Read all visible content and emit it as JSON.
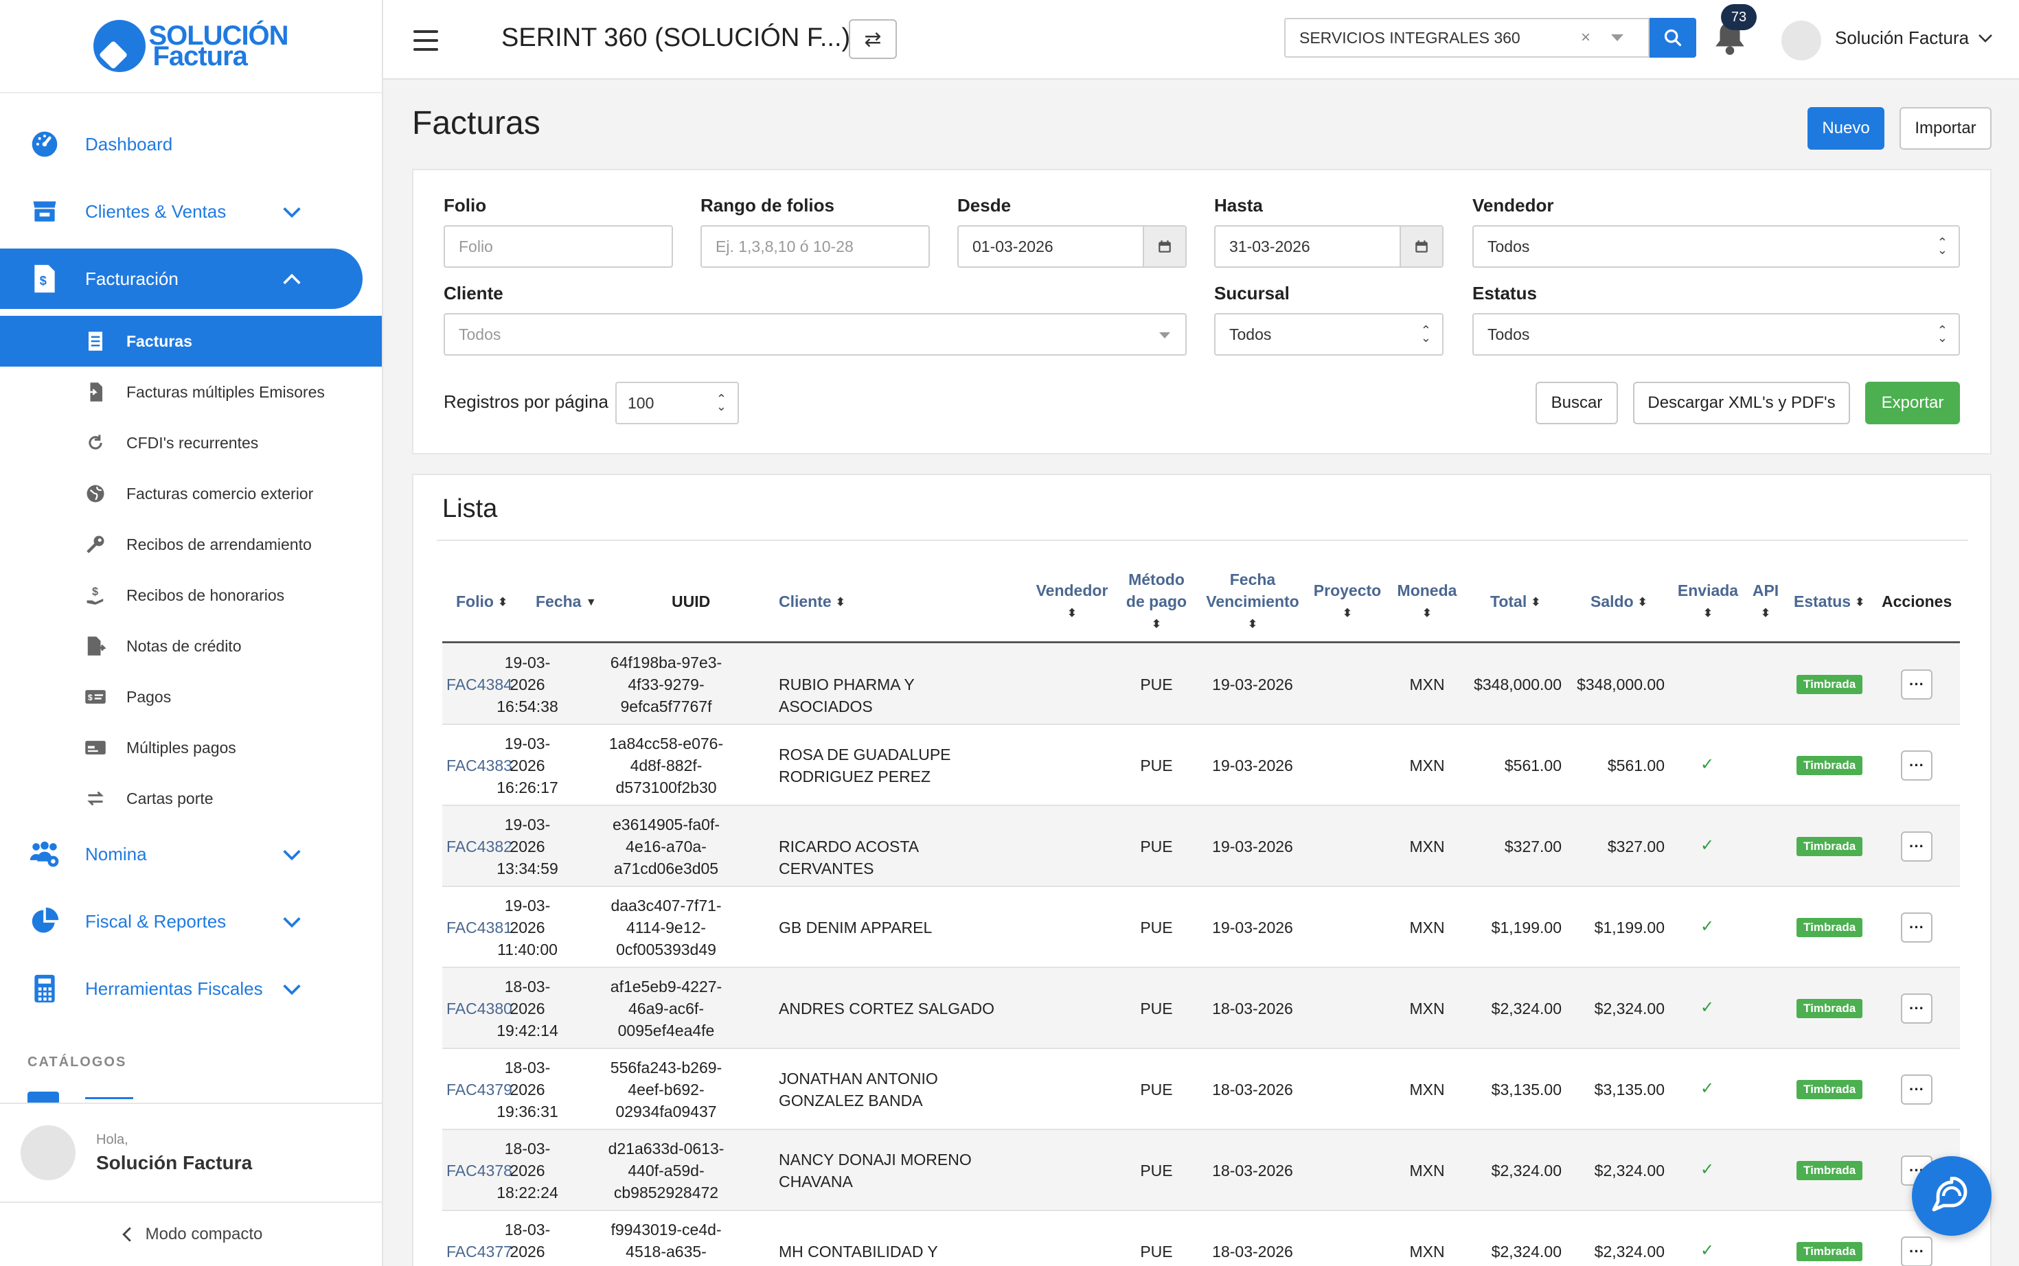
{
  "logo": {
    "line1": "SOLUCIÓN",
    "line2": "Factura"
  },
  "sidebar": {
    "items": [
      {
        "label": "Dashboard"
      },
      {
        "label": "Clientes & Ventas"
      },
      {
        "label": "Facturación"
      },
      {
        "label": "Nomina"
      },
      {
        "label": "Fiscal & Reportes"
      },
      {
        "label": "Herramientas Fiscales"
      }
    ],
    "subitems": [
      {
        "label": "Facturas"
      },
      {
        "label": "Facturas múltiples Emisores"
      },
      {
        "label": "CFDI's recurrentes"
      },
      {
        "label": "Facturas comercio exterior"
      },
      {
        "label": "Recibos de arrendamiento"
      },
      {
        "label": "Recibos de honorarios"
      },
      {
        "label": "Notas de crédito"
      },
      {
        "label": "Pagos"
      },
      {
        "label": "Múltiples pagos"
      },
      {
        "label": "Cartas porte"
      }
    ],
    "catalogos": "CATÁLOGOS",
    "greeting": "Hola,",
    "user": "Solución Factura",
    "compact": "Modo compacto"
  },
  "topbar": {
    "title": "SERINT 360 (SOLUCIÓN F...)",
    "company": "SERVICIOS INTEGRALES 360",
    "clear": "×",
    "notif_count": "73",
    "user": "Solución Factura"
  },
  "page": {
    "title": "Facturas",
    "new_label": "Nuevo",
    "import_label": "Importar"
  },
  "filters": {
    "folio_label": "Folio",
    "folio_placeholder": "Folio",
    "rango_label": "Rango de folios",
    "rango_placeholder": "Ej. 1,3,8,10 ó 10-28",
    "desde_label": "Desde",
    "desde_value": "01-03-2026",
    "hasta_label": "Hasta",
    "hasta_value": "31-03-2026",
    "vendedor_label": "Vendedor",
    "vendedor_value": "Todos",
    "cliente_label": "Cliente",
    "cliente_value": "Todos",
    "sucursal_label": "Sucursal",
    "sucursal_value": "Todos",
    "estatus_label": "Estatus",
    "estatus_value": "Todos",
    "registros_label": "Registros por página",
    "registros_value": "100",
    "buscar": "Buscar",
    "descargar": "Descargar XML's y PDF's",
    "exportar": "Exportar"
  },
  "list": {
    "title": "Lista",
    "headers": {
      "folio": "Folio",
      "fecha": "Fecha",
      "uuid": "UUID",
      "cliente": "Cliente",
      "vendedor": "Vendedor",
      "metodo1": "Método",
      "metodo2": "de pago",
      "fv1": "Fecha",
      "fv2": "Vencimiento",
      "proyecto": "Proyecto",
      "moneda": "Moneda",
      "total": "Total",
      "saldo": "Saldo",
      "enviada": "Enviada",
      "api": "API",
      "estatus": "Estatus",
      "acciones": "Acciones"
    },
    "rows": [
      {
        "folio": "FAC4384",
        "fecha": [
          "19-03-",
          "2026",
          "16:54:38"
        ],
        "uuid": [
          "64f198ba-97e3-",
          "4f33-9279-",
          "9efca5f7767f"
        ],
        "cliente": [
          "RUBIO PHARMA Y ASOCIADOS"
        ],
        "metodo": "PUE",
        "fv": "19-03-2026",
        "moneda": "MXN",
        "total": "$348,000.00",
        "saldo": "$348,000.00",
        "enviada": false,
        "estatus": "Timbrada"
      },
      {
        "folio": "FAC4383",
        "fecha": [
          "19-03-",
          "2026",
          "16:26:17"
        ],
        "uuid": [
          "1a84cc58-e076-",
          "4d8f-882f-",
          "d573100f2b30"
        ],
        "cliente": [
          "ROSA DE GUADALUPE",
          "RODRIGUEZ PEREZ"
        ],
        "metodo": "PUE",
        "fv": "19-03-2026",
        "moneda": "MXN",
        "total": "$561.00",
        "saldo": "$561.00",
        "enviada": true,
        "estatus": "Timbrada"
      },
      {
        "folio": "FAC4382",
        "fecha": [
          "19-03-",
          "2026",
          "13:34:59"
        ],
        "uuid": [
          "e3614905-fa0f-",
          "4e16-a70a-",
          "a71cd06e3d05"
        ],
        "cliente": [
          "RICARDO ACOSTA CERVANTES"
        ],
        "metodo": "PUE",
        "fv": "19-03-2026",
        "moneda": "MXN",
        "total": "$327.00",
        "saldo": "$327.00",
        "enviada": true,
        "estatus": "Timbrada"
      },
      {
        "folio": "FAC4381",
        "fecha": [
          "19-03-",
          "2026",
          "11:40:00"
        ],
        "uuid": [
          "daa3c407-7f71-",
          "4114-9e12-",
          "0cf005393d49"
        ],
        "cliente": [
          "GB DENIM APPAREL"
        ],
        "metodo": "PUE",
        "fv": "19-03-2026",
        "moneda": "MXN",
        "total": "$1,199.00",
        "saldo": "$1,199.00",
        "enviada": true,
        "estatus": "Timbrada"
      },
      {
        "folio": "FAC4380",
        "fecha": [
          "18-03-",
          "2026",
          "19:42:14"
        ],
        "uuid": [
          "af1e5eb9-4227-",
          "46a9-ac6f-",
          "0095ef4ea4fe"
        ],
        "cliente": [
          "ANDRES CORTEZ SALGADO"
        ],
        "metodo": "PUE",
        "fv": "18-03-2026",
        "moneda": "MXN",
        "total": "$2,324.00",
        "saldo": "$2,324.00",
        "enviada": true,
        "estatus": "Timbrada"
      },
      {
        "folio": "FAC4379",
        "fecha": [
          "18-03-",
          "2026",
          "19:36:31"
        ],
        "uuid": [
          "556fa243-b269-",
          "4eef-b692-",
          "02934fa09437"
        ],
        "cliente": [
          "JONATHAN ANTONIO",
          "GONZALEZ BANDA"
        ],
        "metodo": "PUE",
        "fv": "18-03-2026",
        "moneda": "MXN",
        "total": "$3,135.00",
        "saldo": "$3,135.00",
        "enviada": true,
        "estatus": "Timbrada"
      },
      {
        "folio": "FAC4378",
        "fecha": [
          "18-03-",
          "2026",
          "18:22:24"
        ],
        "uuid": [
          "d21a633d-0613-",
          "440f-a59d-",
          "cb9852928472"
        ],
        "cliente": [
          "NANCY DONAJI MORENO",
          "CHAVANA"
        ],
        "metodo": "PUE",
        "fv": "18-03-2026",
        "moneda": "MXN",
        "total": "$2,324.00",
        "saldo": "$2,324.00",
        "enviada": true,
        "estatus": "Timbrada"
      },
      {
        "folio": "FAC4377",
        "fecha": [
          "18-03-",
          "2026",
          ""
        ],
        "uuid": [
          "f9943019-ce4d-",
          "4518-a635-",
          ""
        ],
        "cliente": [
          "MH CONTABILIDAD Y FINANZAS"
        ],
        "metodo": "PUE",
        "fv": "18-03-2026",
        "moneda": "MXN",
        "total": "$2,324.00",
        "saldo": "$2,324.00",
        "enviada": true,
        "estatus": "Timbrada"
      }
    ]
  },
  "colors": {
    "primary": "#1f7ae0",
    "success": "#4caf50",
    "link": "#4a6791"
  }
}
